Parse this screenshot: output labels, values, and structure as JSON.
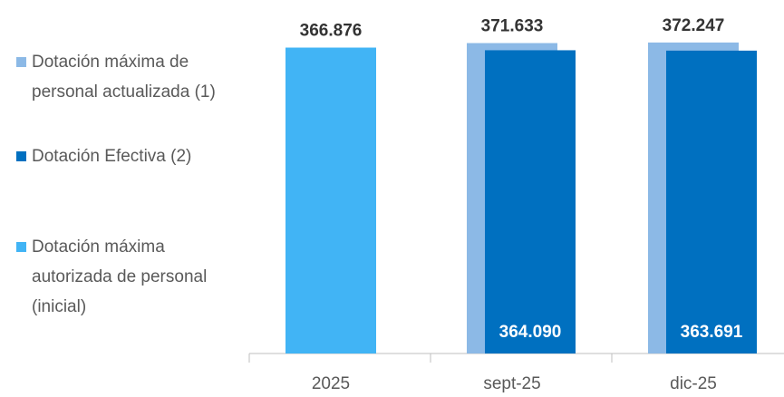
{
  "chart_data": {
    "type": "bar",
    "categories": [
      "2025",
      "sept-25",
      "dic-25"
    ],
    "series": [
      {
        "name": "Dotación máxima de personal actualizada (1)",
        "color": "#8cb9e6",
        "values": [
          null,
          371633,
          372247
        ],
        "value_labels": [
          null,
          "371.633",
          "372.247"
        ]
      },
      {
        "name": "Dotación Efectiva (2)",
        "color": "#0070c0",
        "values": [
          null,
          364090,
          363691
        ],
        "value_labels": [
          null,
          "364.090",
          "363.691"
        ]
      },
      {
        "name": "Dotación máxima autorizada de personal (inicial)",
        "color": "#41b4f5",
        "values": [
          366876,
          null,
          null
        ],
        "value_labels": [
          "366.876",
          null,
          null
        ]
      }
    ],
    "ylim": [
      45000,
      375000
    ],
    "legend": "left"
  }
}
